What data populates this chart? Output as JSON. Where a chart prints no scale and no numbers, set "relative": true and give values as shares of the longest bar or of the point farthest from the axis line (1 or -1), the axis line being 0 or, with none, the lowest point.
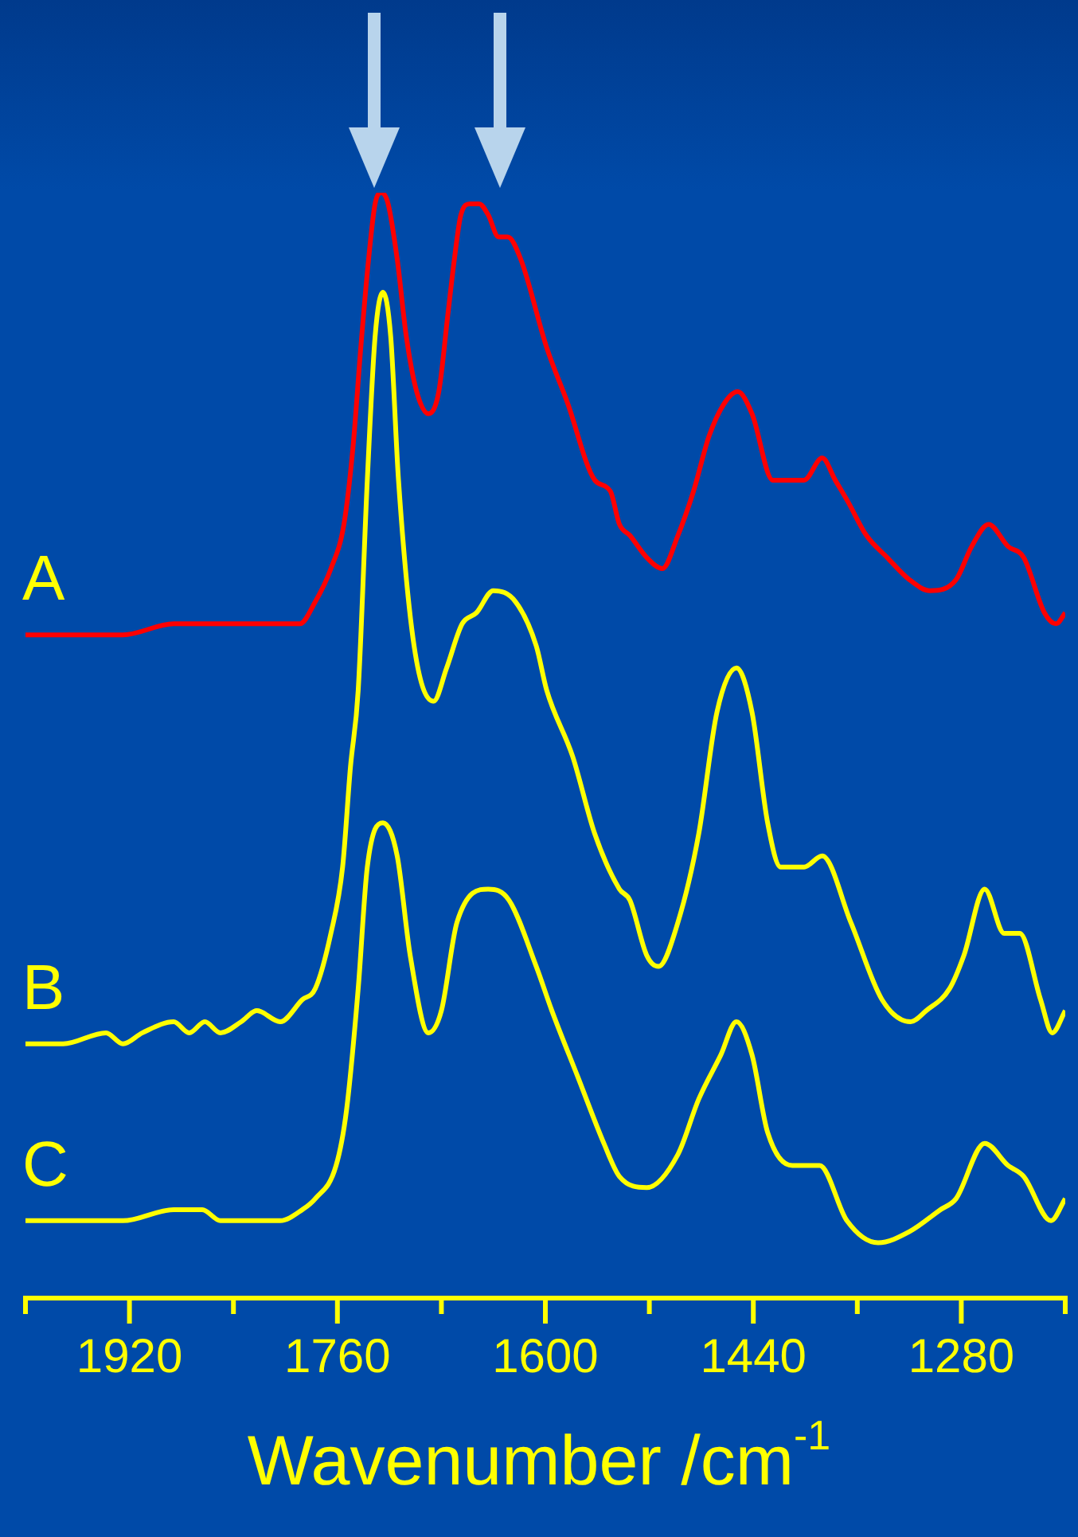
{
  "chart_data": {
    "type": "line",
    "relative": true,
    "xlabel": "Wavenumber /cm$^{-1}$",
    "xlim": [
      2000,
      1200
    ],
    "xticks": [
      {
        "value": 2000,
        "label": null
      },
      1920,
      {
        "value": 1840,
        "label": null
      },
      1760,
      {
        "value": 1680,
        "label": null
      },
      1600,
      {
        "value": 1520,
        "label": null
      },
      1440,
      {
        "value": 1360,
        "label": null
      },
      1280,
      {
        "value": 1200,
        "label": null
      }
    ],
    "legend": false,
    "marker": "none",
    "line_style": "solid",
    "series": [
      {
        "name": "A",
        "color": "#ff0000",
        "x": [
          2000,
          1959,
          1925,
          1886,
          1862,
          1838,
          1801,
          1789,
          1777,
          1765,
          1755,
          1748,
          1742,
          1736,
          1731,
          1726,
          1721,
          1714,
          1707,
          1699,
          1690,
          1682,
          1675,
          1670,
          1665,
          1658,
          1651,
          1644,
          1636,
          1629,
          1619,
          1599,
          1583,
          1562,
          1550,
          1543,
          1535,
          1522,
          1510,
          1498,
          1486,
          1474,
          1462,
          1452,
          1441,
          1425,
          1417,
          1401,
          1387,
          1377,
          1367,
          1353,
          1337,
          1320,
          1304,
          1284,
          1272,
          1259,
          1244,
          1232,
          1216,
          1207,
          1200
        ],
        "values": [
          0.6,
          0.6,
          0.6,
          0.61,
          0.61,
          0.61,
          0.61,
          0.61,
          0.63,
          0.66,
          0.7,
          0.77,
          0.86,
          0.94,
          0.99,
          1.0,
          0.99,
          0.94,
          0.87,
          0.82,
          0.8,
          0.82,
          0.89,
          0.94,
          0.98,
          0.99,
          0.99,
          0.98,
          0.96,
          0.96,
          0.94,
          0.86,
          0.81,
          0.74,
          0.73,
          0.7,
          0.69,
          0.67,
          0.66,
          0.69,
          0.73,
          0.78,
          0.81,
          0.82,
          0.8,
          0.74,
          0.74,
          0.74,
          0.76,
          0.74,
          0.72,
          0.69,
          0.67,
          0.65,
          0.64,
          0.65,
          0.68,
          0.7,
          0.68,
          0.67,
          0.62,
          0.61,
          0.62
        ]
      },
      {
        "name": "B",
        "color": "#ffff00",
        "x": [
          2000,
          1971,
          1938,
          1925,
          1910,
          1886,
          1874,
          1862,
          1850,
          1834,
          1822,
          1804,
          1787,
          1777,
          1765,
          1756,
          1750,
          1744,
          1737,
          1731,
          1725,
          1719,
          1713,
          1701,
          1686,
          1676,
          1664,
          1653,
          1640,
          1623,
          1607,
          1599,
          1579,
          1562,
          1543,
          1535,
          1522,
          1513,
          1498,
          1482,
          1468,
          1453,
          1441,
          1429,
          1419,
          1401,
          1387,
          1365,
          1341,
          1319,
          1307,
          1289,
          1278,
          1262,
          1247,
          1235,
          1219,
          1210,
          1200
        ],
        "values": [
          0.23,
          0.23,
          0.24,
          0.23,
          0.24,
          0.25,
          0.24,
          0.25,
          0.24,
          0.25,
          0.26,
          0.25,
          0.27,
          0.28,
          0.33,
          0.39,
          0.48,
          0.55,
          0.74,
          0.87,
          0.91,
          0.87,
          0.74,
          0.59,
          0.54,
          0.57,
          0.61,
          0.62,
          0.64,
          0.63,
          0.59,
          0.55,
          0.49,
          0.42,
          0.37,
          0.36,
          0.31,
          0.3,
          0.34,
          0.42,
          0.53,
          0.57,
          0.53,
          0.43,
          0.39,
          0.39,
          0.4,
          0.34,
          0.27,
          0.25,
          0.26,
          0.28,
          0.31,
          0.37,
          0.33,
          0.33,
          0.27,
          0.24,
          0.26
        ]
      },
      {
        "name": "C",
        "color": "#ffff00",
        "x": [
          2000,
          1971,
          1925,
          1886,
          1864,
          1850,
          1822,
          1804,
          1787,
          1777,
          1761,
          1753,
          1744,
          1737,
          1725,
          1714,
          1704,
          1690,
          1680,
          1668,
          1644,
          1628,
          1607,
          1595,
          1575,
          1555,
          1543,
          1522,
          1498,
          1482,
          1465,
          1453,
          1441,
          1429,
          1410,
          1389,
          1368,
          1344,
          1320,
          1296,
          1284,
          1262,
          1244,
          1232,
          1211,
          1200
        ],
        "values": [
          0.07,
          0.07,
          0.07,
          0.08,
          0.08,
          0.07,
          0.07,
          0.07,
          0.08,
          0.09,
          0.12,
          0.17,
          0.28,
          0.39,
          0.43,
          0.4,
          0.31,
          0.24,
          0.26,
          0.34,
          0.37,
          0.36,
          0.3,
          0.26,
          0.2,
          0.14,
          0.11,
          0.1,
          0.13,
          0.18,
          0.22,
          0.25,
          0.22,
          0.15,
          0.12,
          0.12,
          0.07,
          0.05,
          0.06,
          0.08,
          0.09,
          0.14,
          0.12,
          0.11,
          0.07,
          0.09
        ]
      }
    ]
  }
}
